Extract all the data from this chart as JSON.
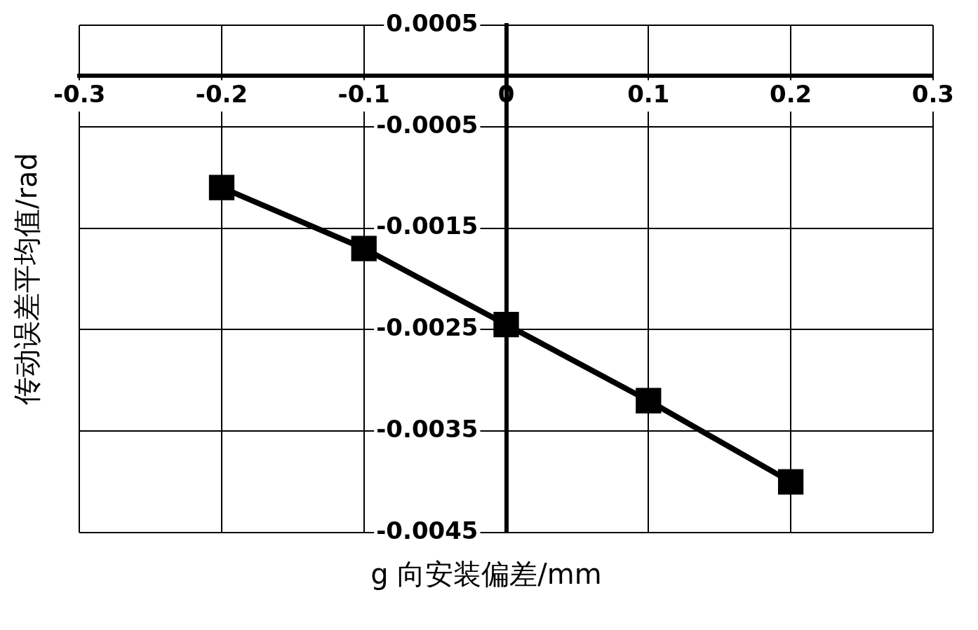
{
  "chart_data": {
    "type": "line",
    "xlabel": "g 向安装偏差/mm",
    "ylabel": "传动误差平均值/rad",
    "x": [
      -0.2,
      -0.1,
      0,
      0.1,
      0.2
    ],
    "series": [
      {
        "color": "#000000",
        "values": [
          -0.0011,
          -0.0017,
          -0.00245,
          -0.0032,
          -0.004
        ]
      }
    ],
    "xlim": [
      -0.3,
      0.3
    ],
    "xticks": [
      -0.3,
      -0.2,
      -0.1,
      0,
      0.1,
      0.2,
      0.3
    ],
    "ylim": [
      -0.0045,
      0.0005
    ],
    "yticks": [
      -0.0045,
      -0.0035,
      -0.0025,
      -0.0015,
      -0.0005,
      0.0005
    ],
    "grid": true,
    "legend": false,
    "marker": "square",
    "line_style": "solid"
  }
}
